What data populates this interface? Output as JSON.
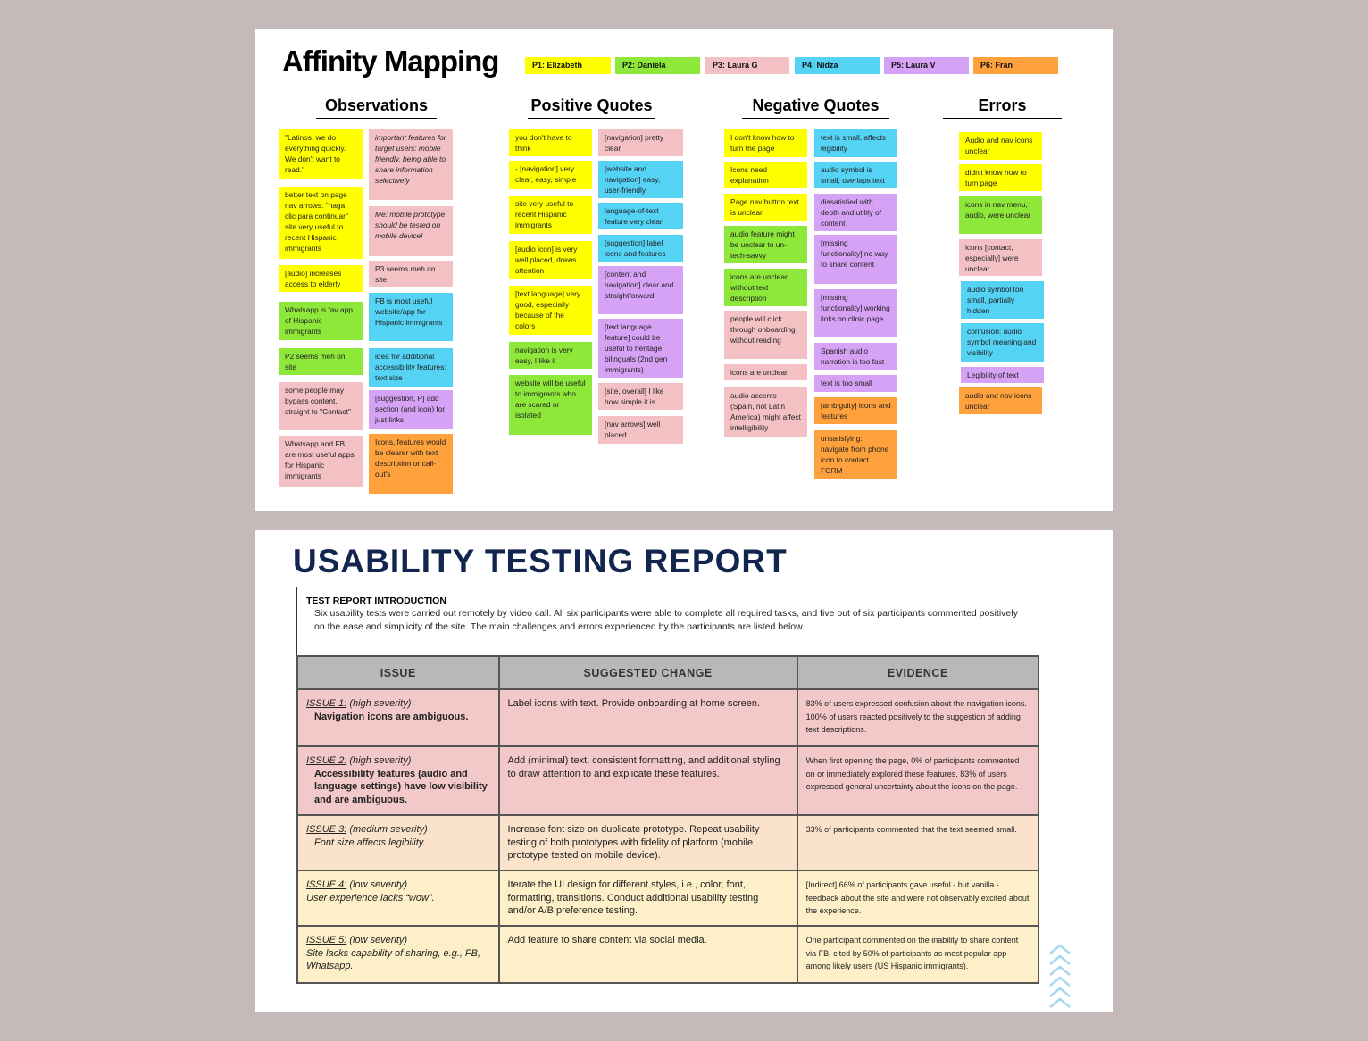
{
  "affinity": {
    "title": "Affinity Mapping",
    "legend": [
      "P1: Elizabeth",
      "P2: Daniela",
      "P3: Laura G",
      "P4: Nidza",
      "P5: Laura V",
      "P6: Fran"
    ],
    "colors": {
      "P1": "#ffff00",
      "P2": "#8ee83a",
      "P3": "#f3c1c4",
      "P4": "#55d3f4",
      "P5": "#d6a2f5",
      "P6": "#ffa13c"
    },
    "headings": [
      "Observations",
      "Positive Quotes",
      "Negative Quotes",
      "Errors"
    ],
    "observations": [
      "\"Latinos, we do everything quickly. We don't want to read.\"",
      "important features for target users: mobile friendly, being able to share information selectively",
      "better text on page nav arrows: \"haga clic para continuar\" site very useful to recent Hispanic immigrants",
      "Me: mobile prototype should be tested on mobile device!",
      "P3 seems meh on site",
      "[audio] increases access to elderly",
      "FB is most useful website/app for Hispanic immigrants",
      "Whatsapp is fav app of Hispanic immigrants",
      "P2 seems meh on site",
      "idea for additional accessibility features: text size",
      "some people may bypass content, straight to \"Contact\"",
      "[suggestion, P] add section (and icon) for just links",
      "Whatsapp and FB are most useful apps for Hispanic immigrants",
      "Icons, features would be clearer with text description or call-out's"
    ],
    "positive": [
      "you don't have to think",
      "[navigation] pretty clear",
      "- [navigation] very clear, easy, simple",
      "[website and navigation] easy, user-friendly",
      "site very useful to recent Hispanic immigrants",
      "language-of-text feature very clear",
      "[audio icon] is very well placed, draws attention",
      "[suggestion] label icons and features",
      "[text language] very good, especially because of the colors",
      "[content and navigation] clear and straightforward",
      "navigation is very easy, I like it",
      "[text language feature] could be useful to heritage bilinguals (2nd gen immigrants)",
      "website will be useful to immigrants who are scared or isolated",
      "[site, overall] I like how simple it is",
      "[nav arrows] well placed"
    ],
    "negative": [
      "I don't know how to turn the page",
      "text is small, affects legibility",
      "Icons need explanation",
      "audio symbol is small, overlaps text",
      "Page nav button text is unclear",
      "dissatisfied with depth and utility of content",
      "audio feature might be unclear to un-tech-savvy",
      "[missing functionality] no way to share content",
      "icons are unclear without text description",
      "[missing functionality] working links on clinic page",
      "people will click through onboarding without reading",
      "Spanish audio narration is too fast",
      "icons are unclear",
      "text is too small",
      "audio accents (Spain, not Latin America) might affect intelligibility",
      "[ambiguity] icons and features",
      "unsatisfying: navigate from phone icon to contact FORM"
    ],
    "errors": [
      "Audio and nav icons unclear",
      "didn't know how to turn page",
      "icons in nav menu, audio, were unclear",
      "icons [contact, especially] were unclear",
      "audio symbol too small, partially hidden",
      "confusion: audio symbol meaning and visibility",
      "Legibility of text",
      "audio and nav icons unclear"
    ]
  },
  "report": {
    "title": "USABILITY TESTING REPORT",
    "intro_heading": "TEST REPORT INTRODUCTION",
    "intro_text": "Six usability tests were carried out remotely by video call. All six participants were able to complete all required tasks, and five out of six participants commented positively on the ease and simplicity of the site. The main challenges and errors experienced by the participants are listed below.",
    "columns": [
      "ISSUE",
      "SUGGESTED CHANGE",
      "EVIDENCE"
    ],
    "rows": [
      {
        "label": "ISSUE 1:",
        "severity": "(high severity)",
        "desc": "Navigation icons are ambiguous.",
        "change": "Label icons with text. Provide onboarding at home screen.",
        "evidence": "83% of users expressed confusion about the navigation icons. 100% of users reacted positively to the suggestion of adding text descriptions."
      },
      {
        "label": "ISSUE 2:",
        "severity": "(high severity)",
        "desc": "Accessibility features (audio and language settings) have low visibility and are ambiguous.",
        "change": "Add (minimal) text, consistent formatting, and additional styling to draw attention to and explicate these features.",
        "evidence": "When first opening the page, 0% of participants commented on or immediately explored these features. 83% of users expressed general uncertainty about the icons on the page."
      },
      {
        "label": "ISSUE 3:",
        "severity": "(medium severity)",
        "desc": "Font size affects legibility.",
        "change": "Increase font size on duplicate prototype. Repeat usability testing of both prototypes with fidelity of platform (mobile prototype tested on mobile device).",
        "evidence": "33% of participants commented that the text seemed small."
      },
      {
        "label": "ISSUE 4:",
        "severity": "(low severity)",
        "desc": "User experience lacks “wow”.",
        "change": "Iterate the UI design for different styles, i.e., color, font, formatting, transitions. Conduct additional usability testing and/or A/B preference testing.",
        "evidence": "[Indirect] 66% of participants gave useful - but vanilla - feedback about the site and were not observably excited about the experience."
      },
      {
        "label": "ISSUE 5:",
        "severity": "(low severity)",
        "desc": "Site lacks capability of sharing, e.g., FB, Whatsapp.",
        "change": "Add feature to share content via social media.",
        "evidence": "One participant commented on the inability to share content via FB, cited by 50% of participants as most popular app among likely users (US Hispanic immigrants)."
      }
    ],
    "decoration": "chevron-up-icon"
  }
}
